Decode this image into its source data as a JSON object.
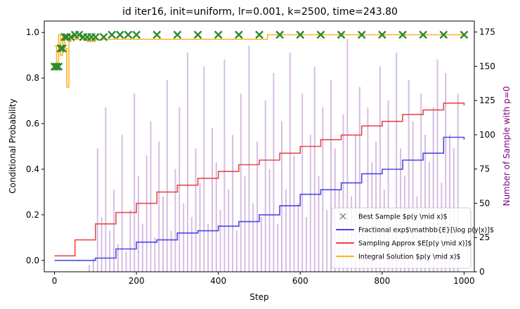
{
  "chart_data": {
    "type": "line",
    "title": "id iter16, init=uniform, lr=0.001, k=2500, time=243.80",
    "xlabel": "Step",
    "ylabel": "Conditional Probability",
    "y2label": "Number of Sample with p=0",
    "xlim": [
      -25,
      1025
    ],
    "ylim": [
      -0.05,
      1.05
    ],
    "y2lim": [
      0,
      183
    ],
    "xticks": [
      0,
      200,
      400,
      600,
      800,
      1000
    ],
    "yticks": [
      0.0,
      0.2,
      0.4,
      0.6,
      0.8,
      1.0
    ],
    "y2ticks": [
      0,
      25,
      50,
      75,
      100,
      125,
      150,
      175
    ],
    "grid": false,
    "legend_position": "lower-right",
    "legend": [
      {
        "label": "Best Sample $p(y \\mid x)$",
        "color": "#808080",
        "marker": "x"
      },
      {
        "label": "Fractional exp$\\mathbb{E}[\\log p(y|x)]$",
        "color": "#2a2ae6",
        "marker": "line"
      },
      {
        "label": "Sampling Approx $E[p(y \\mid x)]$",
        "color": "#e62a2a",
        "marker": "line"
      },
      {
        "label": "Integral Solution $p(y \\mid x)$",
        "color": "#ffa500",
        "marker": "line"
      }
    ],
    "series": [
      {
        "name": "Fractional exp$\\mathbb{E}[\\log p(y|x)]$",
        "color": "#2a2ae6",
        "x": [
          0,
          50,
          100,
          150,
          200,
          250,
          300,
          350,
          400,
          450,
          500,
          550,
          600,
          650,
          700,
          750,
          800,
          850,
          900,
          950,
          1000
        ],
        "y": [
          0.0,
          0.0,
          0.01,
          0.05,
          0.08,
          0.09,
          0.12,
          0.13,
          0.15,
          0.17,
          0.2,
          0.24,
          0.29,
          0.31,
          0.34,
          0.38,
          0.4,
          0.44,
          0.47,
          0.54,
          0.53
        ]
      },
      {
        "name": "Sampling Approx $E[p(y \\mid x)]$",
        "color": "#e62a2a",
        "x": [
          0,
          50,
          100,
          150,
          200,
          250,
          300,
          350,
          400,
          450,
          500,
          550,
          600,
          650,
          700,
          750,
          800,
          850,
          900,
          950,
          1000
        ],
        "y": [
          0.02,
          0.09,
          0.16,
          0.21,
          0.25,
          0.3,
          0.33,
          0.36,
          0.39,
          0.42,
          0.44,
          0.47,
          0.5,
          0.53,
          0.55,
          0.59,
          0.61,
          0.64,
          0.66,
          0.69,
          0.68
        ]
      },
      {
        "name": "Integral Solution $p(y \\mid x)$",
        "color": "#ffa500",
        "x": [
          0,
          5,
          10,
          15,
          20,
          25,
          30,
          35,
          40,
          50,
          60,
          80,
          100,
          130,
          160,
          200,
          300,
          400,
          520,
          600,
          700,
          800,
          900,
          1000
        ],
        "y": [
          0.94,
          0.85,
          0.99,
          0.9,
          0.99,
          0.93,
          0.76,
          0.96,
          0.98,
          0.97,
          0.97,
          0.96,
          0.97,
          0.97,
          0.97,
          0.97,
          0.97,
          0.97,
          0.99,
          0.99,
          0.99,
          0.99,
          0.99,
          0.99
        ]
      }
    ],
    "best_sample": {
      "name": "Best Sample $p(y \\mid x)$",
      "color": "#2e8b2e",
      "x": [
        0,
        5,
        10,
        15,
        20,
        25,
        30,
        40,
        50,
        60,
        70,
        80,
        90,
        100,
        120,
        140,
        160,
        180,
        200,
        250,
        300,
        350,
        400,
        450,
        500,
        550,
        600,
        650,
        700,
        750,
        800,
        850,
        900,
        950,
        1000
      ],
      "y": [
        0.85,
        0.85,
        0.85,
        0.93,
        0.93,
        0.98,
        0.98,
        0.98,
        0.99,
        0.99,
        0.98,
        0.98,
        0.98,
        0.98,
        0.98,
        0.99,
        0.99,
        0.99,
        0.99,
        0.99,
        0.99,
        0.99,
        0.99,
        0.99,
        0.99,
        0.99,
        0.99,
        0.99,
        0.99,
        0.99,
        0.99,
        0.99,
        0.99,
        0.99,
        0.99
      ]
    },
    "bars": {
      "name": "Number of Sample with p=0",
      "color": "#9b59b6",
      "axis": "right",
      "x": [
        85,
        95,
        105,
        115,
        125,
        135,
        145,
        155,
        165,
        175,
        185,
        195,
        205,
        215,
        225,
        235,
        245,
        255,
        265,
        275,
        285,
        295,
        305,
        315,
        325,
        335,
        345,
        355,
        365,
        375,
        385,
        395,
        405,
        415,
        425,
        435,
        445,
        455,
        465,
        475,
        485,
        495,
        505,
        515,
        525,
        535,
        545,
        555,
        565,
        575,
        585,
        595,
        605,
        615,
        625,
        635,
        645,
        655,
        665,
        675,
        685,
        695,
        705,
        715,
        725,
        735,
        745,
        755,
        765,
        775,
        785,
        795,
        805,
        815,
        825,
        835,
        845,
        855,
        865,
        875,
        885,
        895,
        905,
        915,
        925,
        935,
        945,
        955,
        965,
        975,
        985
      ],
      "values": [
        5,
        10,
        90,
        40,
        120,
        30,
        60,
        20,
        100,
        15,
        45,
        130,
        70,
        35,
        85,
        110,
        25,
        95,
        55,
        140,
        30,
        75,
        120,
        50,
        160,
        40,
        90,
        65,
        150,
        35,
        105,
        80,
        45,
        155,
        60,
        100,
        30,
        130,
        70,
        165,
        50,
        95,
        40,
        125,
        75,
        145,
        35,
        110,
        60,
        160,
        85,
        50,
        130,
        40,
        100,
        150,
        70,
        120,
        45,
        140,
        90,
        60,
        115,
        170,
        55,
        100,
        135,
        40,
        120,
        80,
        95,
        150,
        60,
        125,
        45,
        160,
        90,
        70,
        140,
        110,
        55,
        130,
        100,
        80,
        120,
        155,
        65,
        145,
        100,
        90,
        130
      ]
    }
  }
}
